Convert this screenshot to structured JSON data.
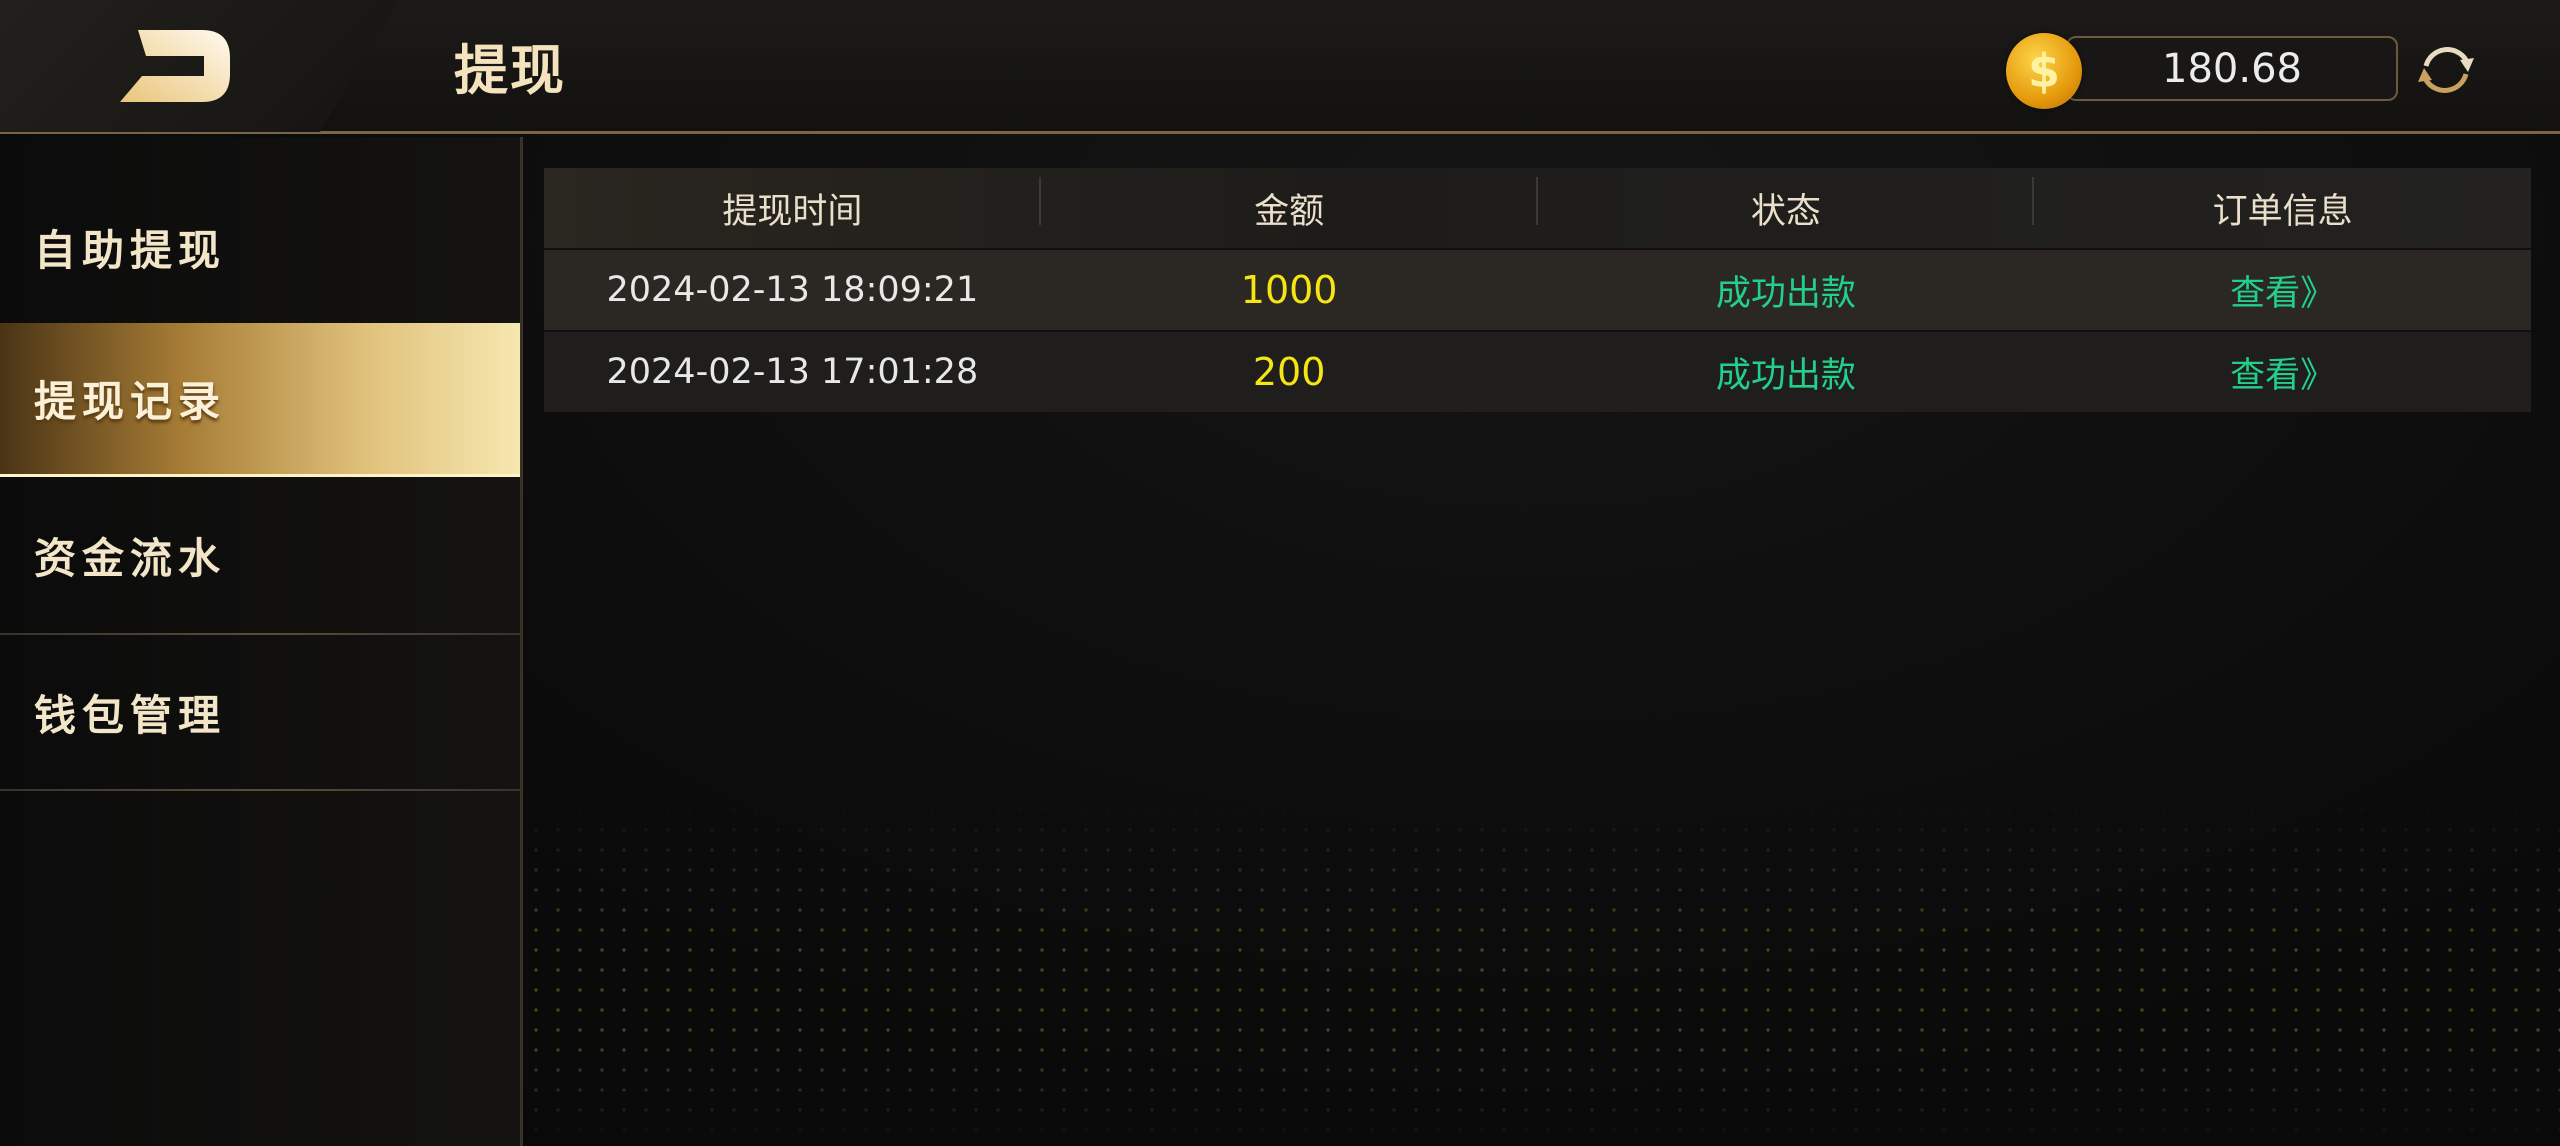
{
  "header": {
    "title": "提现",
    "balance": "180.68",
    "coin_symbol": "$",
    "icons": {
      "back": "back-logo-icon",
      "coin": "coin-icon",
      "refresh": "refresh-icon"
    }
  },
  "sidebar": {
    "items": [
      {
        "label": "自助提现"
      },
      {
        "label": "提现记录",
        "active": true
      },
      {
        "label": "资金流水"
      },
      {
        "label": "钱包管理"
      }
    ]
  },
  "table": {
    "columns": [
      "提现时间",
      "金额",
      "状态",
      "订单信息"
    ],
    "rows": [
      {
        "time": "2024-02-13 18:09:21",
        "amount": "1000",
        "status": "成功出款",
        "info": "查看》"
      },
      {
        "time": "2024-02-13 17:01:28",
        "amount": "200",
        "status": "成功出款",
        "info": "查看》"
      }
    ]
  },
  "colors": {
    "accent_gold": "#e0c17a",
    "amount": "#f5e513",
    "status": "#22d08c"
  }
}
